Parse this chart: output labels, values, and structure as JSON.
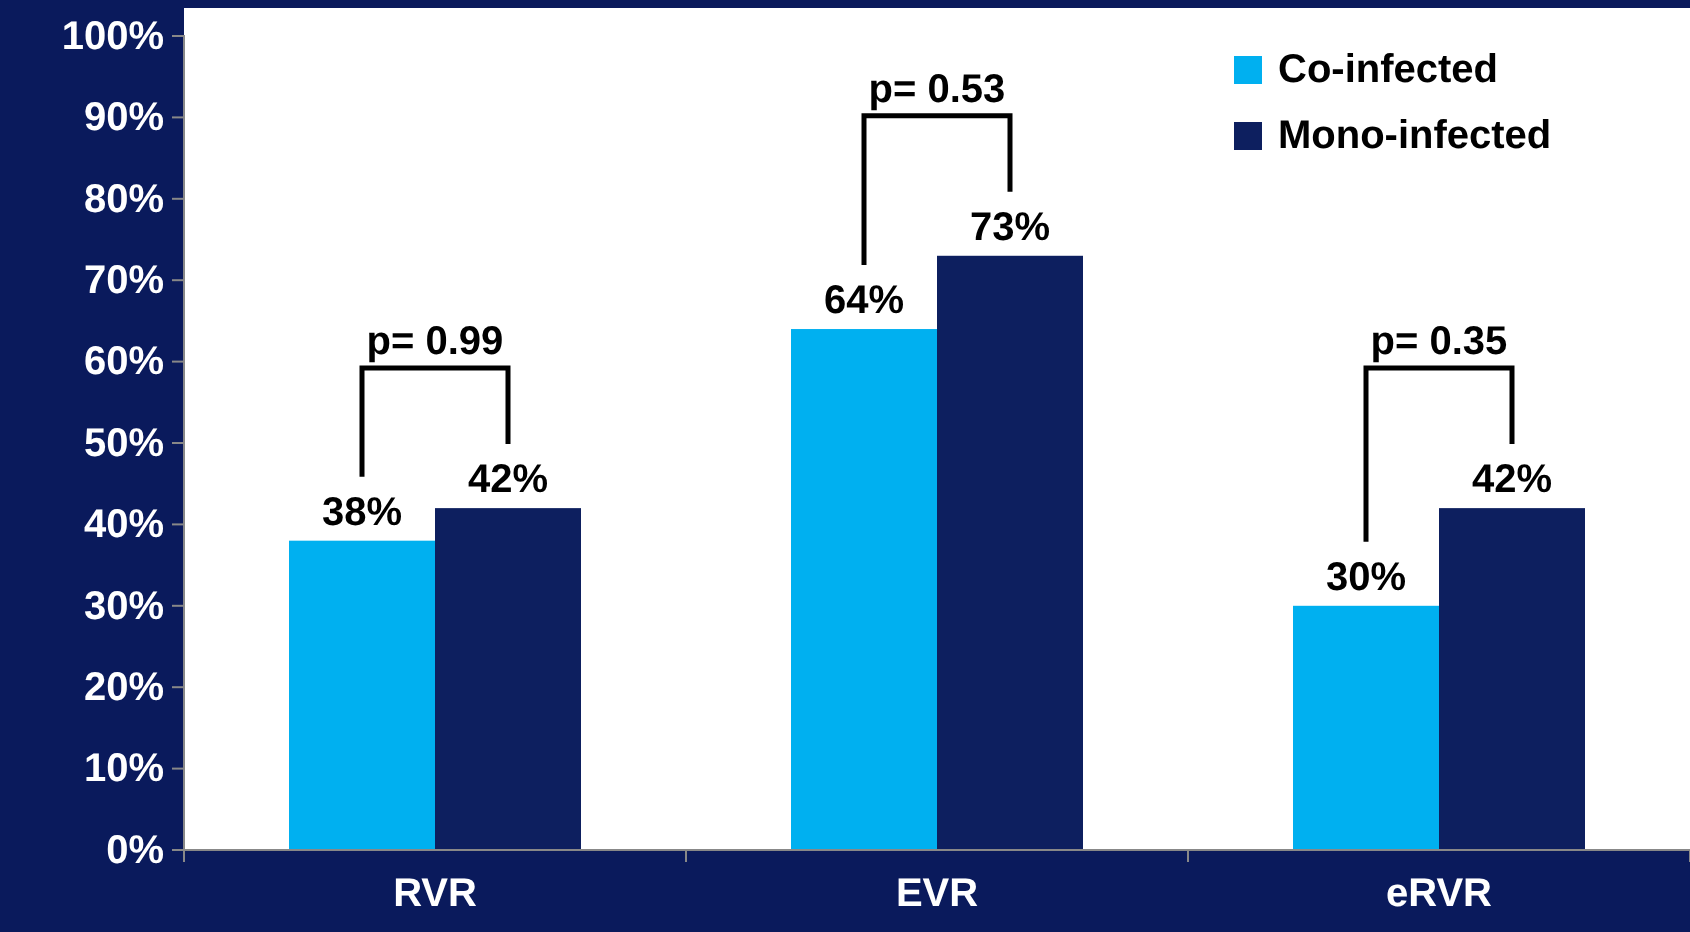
{
  "chart_data": {
    "type": "bar",
    "categories": [
      "RVR",
      "EVR",
      "eRVR"
    ],
    "series": [
      {
        "name": "Co-infected",
        "color": "#00b0f0",
        "values": [
          38,
          64,
          30
        ]
      },
      {
        "name": "Mono-infected",
        "color": "#0d1f5f",
        "values": [
          42,
          73,
          42
        ]
      }
    ],
    "ylim": [
      0,
      100
    ],
    "yticks": [
      {
        "value": 0,
        "label": "0%"
      },
      {
        "value": 10,
        "label": "10%"
      },
      {
        "value": 20,
        "label": "20%"
      },
      {
        "value": 30,
        "label": "30%"
      },
      {
        "value": 40,
        "label": "40%"
      },
      {
        "value": 50,
        "label": "50%"
      },
      {
        "value": 60,
        "label": "60%"
      },
      {
        "value": 70,
        "label": "70%"
      },
      {
        "value": 80,
        "label": "80%"
      },
      {
        "value": 90,
        "label": "90%"
      },
      {
        "value": 100,
        "label": "100%"
      }
    ],
    "value_labels": [
      [
        "38%",
        "64%",
        "30%"
      ],
      [
        "42%",
        "73%",
        "42%"
      ]
    ],
    "annotations": [
      "p= 0.99",
      "p= 0.53",
      "p= 0.35"
    ],
    "legend": "top right",
    "grid": false
  }
}
